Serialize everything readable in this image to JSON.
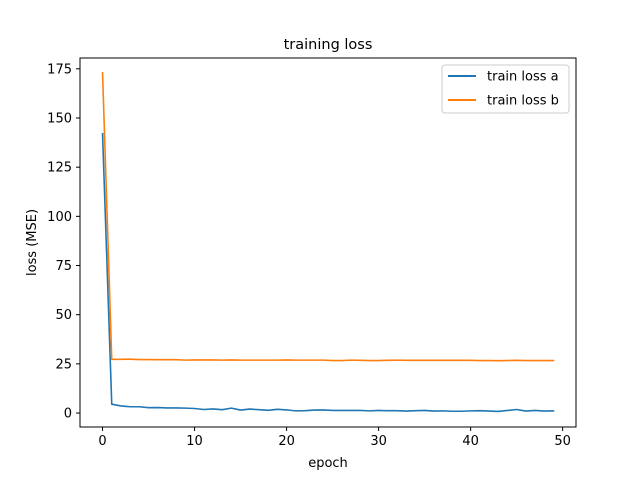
{
  "chart_data": {
    "type": "line",
    "title": "training loss",
    "xlabel": "epoch",
    "ylabel": "loss (MSE)",
    "xlim": [
      -2.45,
      51.45
    ],
    "ylim": [
      -7.1,
      180.5
    ],
    "x_ticks": [
      0,
      10,
      20,
      30,
      40,
      50
    ],
    "y_ticks": [
      0,
      25,
      50,
      75,
      100,
      125,
      150,
      175
    ],
    "grid": false,
    "legend_position": "top-right",
    "x": [
      0,
      1,
      2,
      3,
      4,
      5,
      6,
      7,
      8,
      9,
      10,
      11,
      12,
      13,
      14,
      15,
      16,
      17,
      18,
      19,
      20,
      21,
      22,
      23,
      24,
      25,
      26,
      27,
      28,
      29,
      30,
      31,
      32,
      33,
      34,
      35,
      36,
      37,
      38,
      39,
      40,
      41,
      42,
      43,
      44,
      45,
      46,
      47,
      48,
      49
    ],
    "series": [
      {
        "name": "train loss a",
        "color": "#1f77b4",
        "values": [
          142.0,
          4.5,
          3.6,
          3.2,
          3.2,
          2.7,
          2.8,
          2.6,
          2.6,
          2.5,
          2.3,
          1.8,
          2.1,
          1.7,
          2.5,
          1.5,
          2.0,
          1.7,
          1.4,
          1.9,
          1.6,
          1.1,
          1.2,
          1.5,
          1.6,
          1.3,
          1.3,
          1.3,
          1.3,
          1.1,
          1.3,
          1.2,
          1.2,
          1.0,
          1.2,
          1.3,
          1.0,
          1.1,
          0.9,
          0.9,
          1.1,
          1.2,
          1.0,
          0.8,
          1.3,
          1.8,
          1.0,
          1.3,
          1.0,
          1.1
        ]
      },
      {
        "name": "train loss b",
        "color": "#ff7f0e",
        "values": [
          173.0,
          27.3,
          27.3,
          27.4,
          27.2,
          27.2,
          27.1,
          27.1,
          27.1,
          26.9,
          27.0,
          27.0,
          27.0,
          26.9,
          27.0,
          26.9,
          26.9,
          26.9,
          26.9,
          26.9,
          27.0,
          26.9,
          26.9,
          26.9,
          26.9,
          26.7,
          26.7,
          26.9,
          26.8,
          26.7,
          26.7,
          26.8,
          26.9,
          26.8,
          26.8,
          26.8,
          26.8,
          26.8,
          26.8,
          26.8,
          26.8,
          26.7,
          26.7,
          26.6,
          26.7,
          26.8,
          26.7,
          26.7,
          26.7,
          26.7
        ]
      }
    ]
  }
}
